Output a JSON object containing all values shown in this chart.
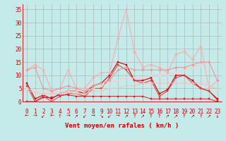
{
  "xlabel": "Vent moyen/en rafales ( km/h )",
  "xlim": [
    -0.5,
    23.5
  ],
  "ylim": [
    0,
    37
  ],
  "yticks": [
    0,
    5,
    10,
    15,
    20,
    25,
    30,
    35
  ],
  "xticks": [
    0,
    1,
    2,
    3,
    4,
    5,
    6,
    7,
    8,
    9,
    10,
    11,
    12,
    13,
    14,
    15,
    16,
    17,
    18,
    19,
    20,
    21,
    22,
    23
  ],
  "bg_color": "#c5eaea",
  "grid_color": "#aaaaaa",
  "series": [
    {
      "x": [
        0,
        1,
        2,
        3,
        4,
        5,
        6,
        7,
        8,
        9,
        10,
        11,
        12,
        13,
        14,
        15,
        16,
        17,
        18,
        19,
        20,
        21,
        22,
        23
      ],
      "y": [
        7,
        1,
        2.5,
        1,
        3,
        4,
        4,
        3,
        6,
        7,
        10,
        15,
        14,
        8,
        8,
        9,
        3,
        4.5,
        10,
        10,
        8,
        5,
        4,
        1
      ],
      "color": "#cc0000",
      "lw": 0.8,
      "marker": "s",
      "ms": 1.8
    },
    {
      "x": [
        0,
        1,
        2,
        3,
        4,
        5,
        6,
        7,
        8,
        9,
        10,
        11,
        12,
        13,
        14,
        15,
        16,
        17,
        18,
        19,
        20,
        21,
        22,
        23
      ],
      "y": [
        6,
        0,
        2,
        0,
        2,
        3,
        3,
        2,
        5,
        5,
        9,
        14,
        12,
        8,
        7,
        8,
        2,
        4,
        9,
        10,
        7,
        5,
        4,
        0.5
      ],
      "color": "#ee3333",
      "lw": 0.7,
      "marker": "s",
      "ms": 1.5
    },
    {
      "x": [
        0,
        1,
        2,
        3,
        4,
        5,
        6,
        7,
        8,
        9,
        10,
        11,
        12,
        13,
        14,
        15,
        16,
        17,
        18,
        19,
        20,
        21,
        22,
        23
      ],
      "y": [
        12,
        14,
        12,
        4,
        5,
        12,
        5,
        5,
        9,
        11,
        11,
        24,
        35,
        19,
        13,
        14,
        13,
        11,
        18,
        19,
        16,
        21,
        5,
        8
      ],
      "color": "#ffaaaa",
      "lw": 0.8,
      "marker": "D",
      "ms": 2.0
    },
    {
      "x": [
        0,
        1,
        2,
        3,
        4,
        5,
        6,
        7,
        8,
        9,
        10,
        11,
        12,
        13,
        14,
        15,
        16,
        17,
        18,
        19,
        20,
        21,
        22,
        23
      ],
      "y": [
        5,
        4,
        3,
        3,
        3,
        4,
        4,
        4,
        5,
        6,
        7,
        8,
        9,
        9,
        9,
        10,
        10,
        10,
        11,
        12,
        13,
        14,
        15,
        8
      ],
      "color": "#ffcccc",
      "lw": 0.8,
      "marker": "D",
      "ms": 1.8
    },
    {
      "x": [
        0,
        1,
        2,
        3,
        4,
        5,
        6,
        7,
        8,
        9,
        10,
        11,
        12,
        13,
        14,
        15,
        16,
        17,
        18,
        19,
        20,
        21,
        22,
        23
      ],
      "y": [
        12,
        13,
        5,
        4,
        5,
        6,
        5,
        4,
        6,
        7,
        8,
        12,
        13,
        12,
        12,
        12,
        12,
        12,
        13,
        13,
        14,
        15,
        15,
        8
      ],
      "color": "#ee9999",
      "lw": 0.8,
      "marker": "D",
      "ms": 1.8
    },
    {
      "x": [
        0,
        1,
        2,
        3,
        4,
        5,
        6,
        7,
        8,
        9,
        10,
        11,
        12,
        13,
        14,
        15,
        16,
        17,
        18,
        19,
        20,
        21,
        22,
        23
      ],
      "y": [
        0,
        0,
        1.5,
        1.5,
        2.5,
        2.5,
        2,
        2,
        2,
        2,
        2,
        2,
        2,
        2,
        2,
        1,
        1,
        1,
        1,
        1,
        1,
        1,
        1,
        0
      ],
      "color": "#cc2222",
      "lw": 0.7,
      "marker": "s",
      "ms": 1.5
    },
    {
      "x": [
        0,
        1,
        2,
        3,
        4,
        5,
        6,
        7,
        8,
        9,
        10,
        11,
        12,
        13,
        14,
        15,
        16,
        17,
        18,
        19,
        20,
        21,
        22,
        23
      ],
      "y": [
        4,
        3.5,
        3,
        3,
        3,
        3.5,
        3,
        3,
        4,
        4,
        5,
        5,
        6,
        6,
        7,
        7,
        7,
        7,
        7,
        7,
        7,
        7,
        6,
        5
      ],
      "color": "#ffbbbb",
      "lw": 0.7,
      "marker": "D",
      "ms": 1.5
    }
  ],
  "wind_symbols": [
    "←",
    "→",
    "↙",
    "←",
    "↑",
    "→",
    "↗",
    "↙",
    "→",
    "↘",
    "↙",
    "→",
    "↗",
    "↑",
    "↗",
    "↑",
    "↑",
    "↗",
    "↗",
    "↑",
    "↗",
    "↑",
    "↗",
    "↓"
  ],
  "xlabel_fontsize": 6.5,
  "tick_fontsize": 5.5,
  "symbol_fontsize": 5.0
}
